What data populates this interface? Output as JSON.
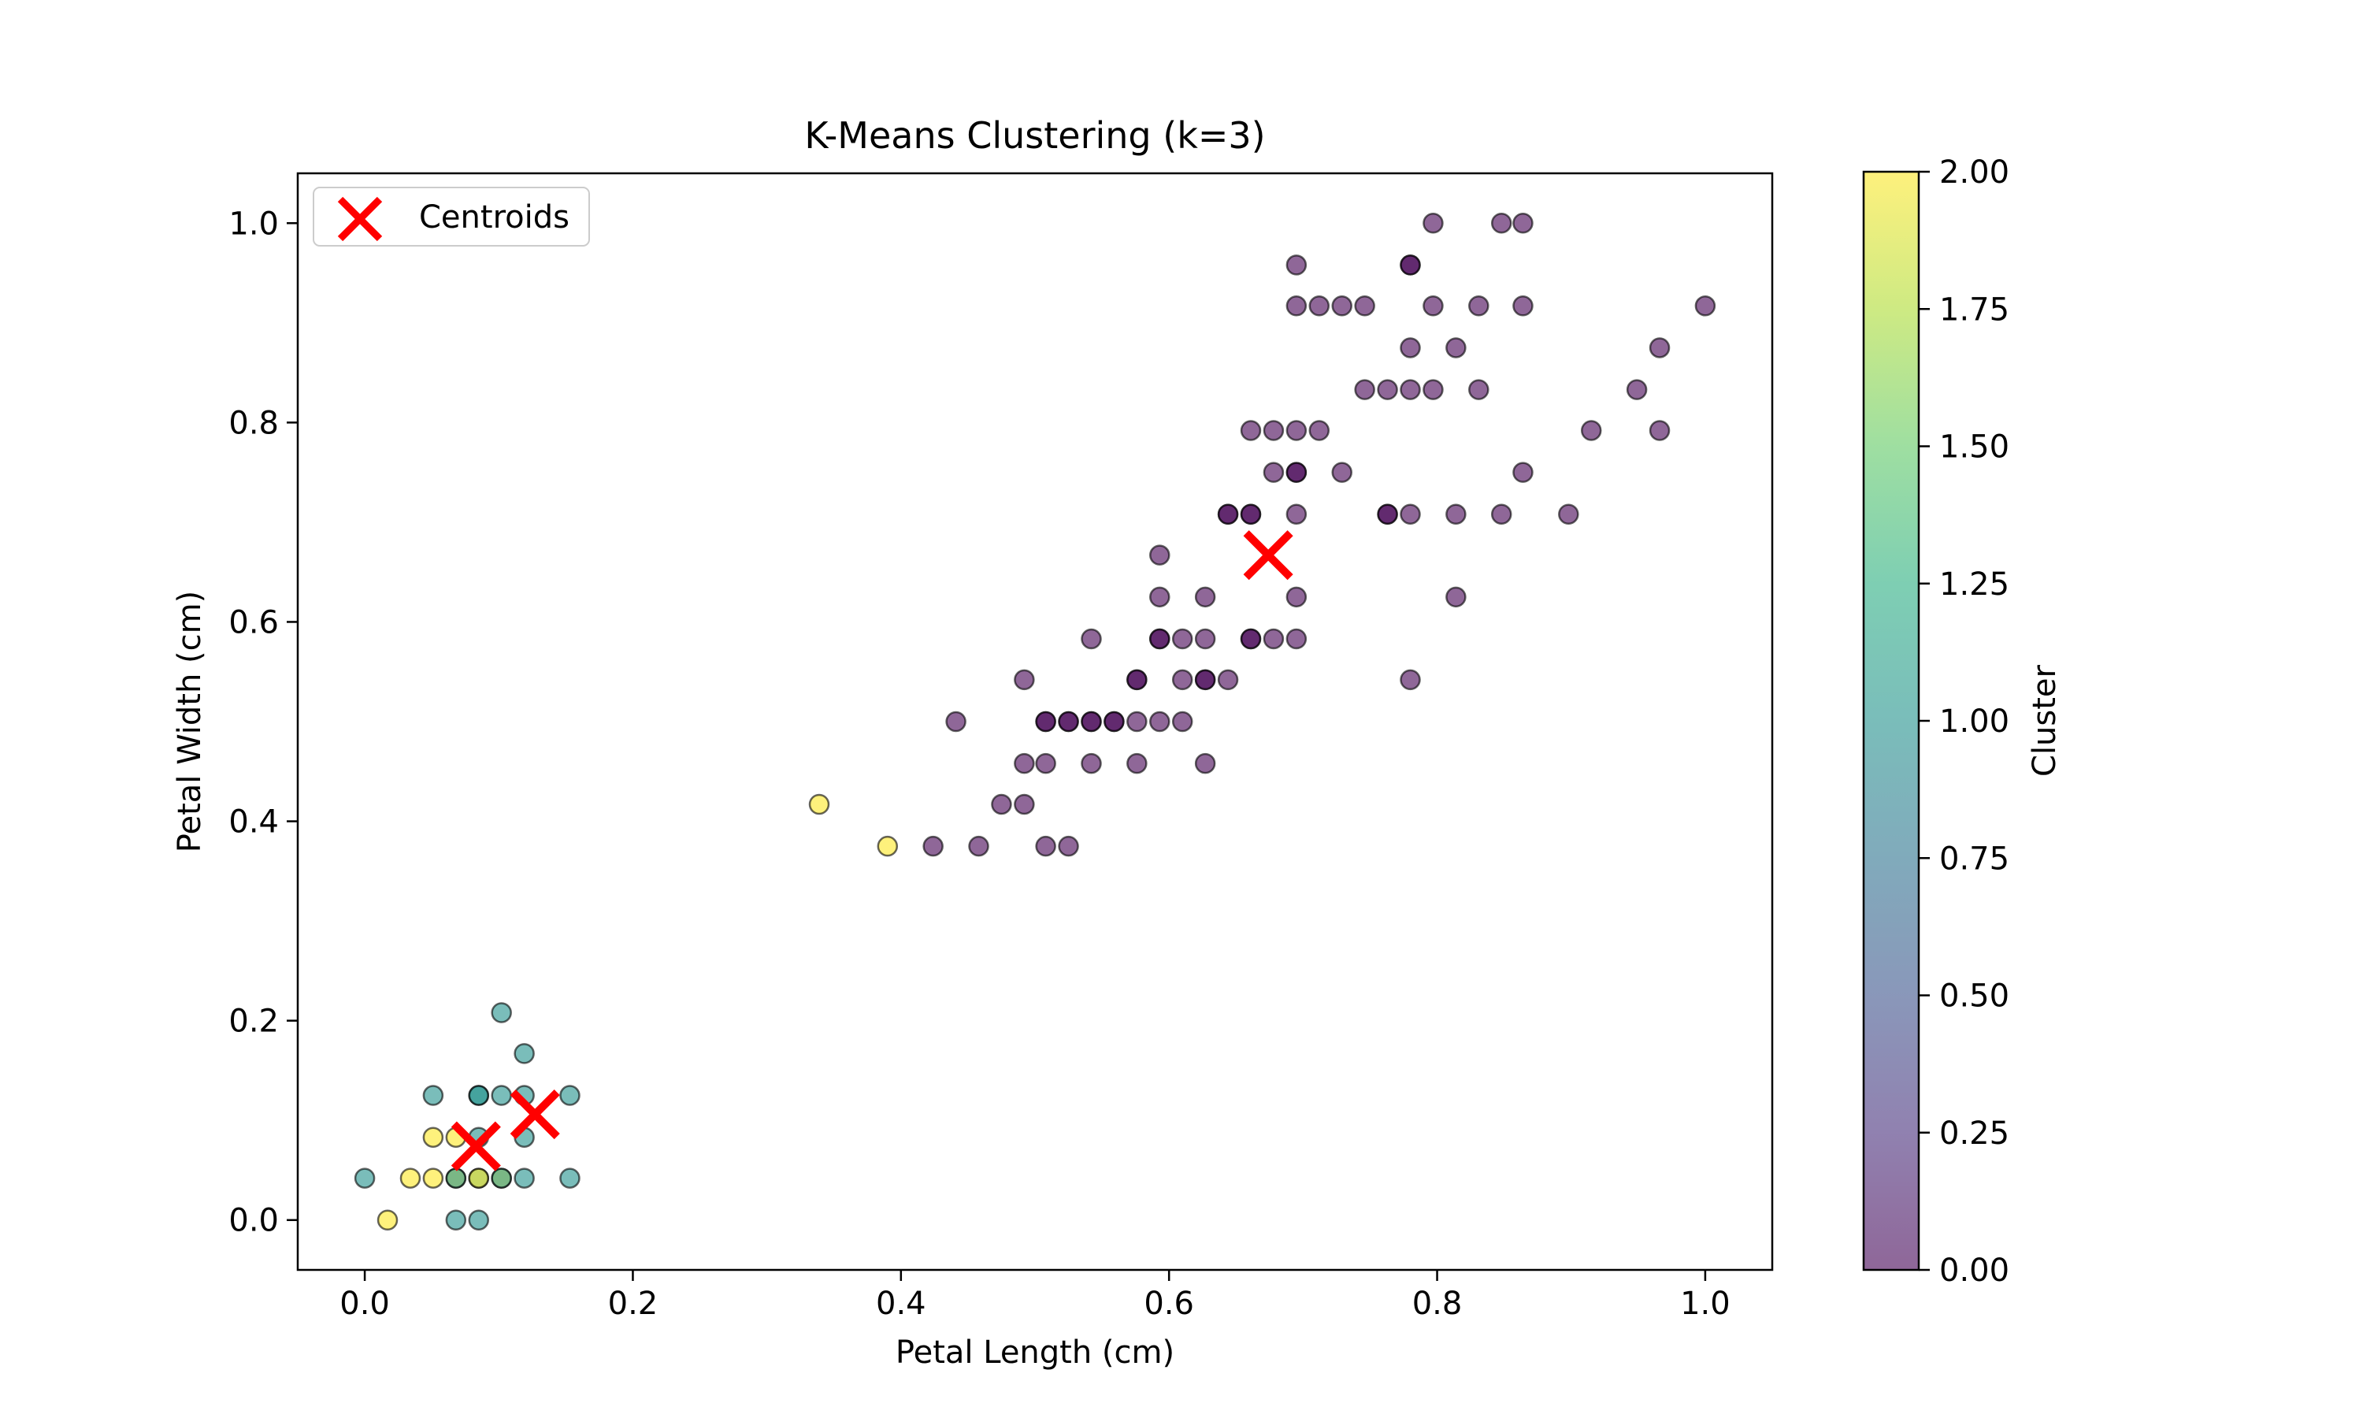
{
  "chart_data": {
    "type": "scatter",
    "title": "K-Means Clustering (k=3)",
    "xlabel": "Petal Length (cm)",
    "ylabel": "Petal Width (cm)",
    "xlim": [
      -0.05,
      1.05
    ],
    "ylim": [
      -0.05,
      1.05
    ],
    "xticks": [
      0.0,
      0.2,
      0.4,
      0.6,
      0.8,
      1.0
    ],
    "xtick_labels": [
      "0.0",
      "0.2",
      "0.4",
      "0.6",
      "0.8",
      "1.0"
    ],
    "yticks": [
      0.0,
      0.2,
      0.4,
      0.6,
      0.8,
      1.0
    ],
    "ytick_labels": [
      "0.0",
      "0.2",
      "0.4",
      "0.6",
      "0.8",
      "1.0"
    ],
    "grid": false,
    "legend": {
      "location": "upper-left",
      "entries": [
        "Centroids"
      ]
    },
    "colorbar": {
      "label": "Cluster",
      "range": [
        0.0,
        2.0
      ],
      "ticks": [
        0.0,
        0.25,
        0.5,
        0.75,
        1.0,
        1.25,
        1.5,
        1.75,
        2.0
      ],
      "tick_labels": [
        "0.00",
        "0.25",
        "0.50",
        "0.75",
        "1.00",
        "1.25",
        "1.50",
        "1.75",
        "2.00"
      ],
      "colormap": "viridis",
      "alpha": 0.6
    },
    "centroids": {
      "name": "Centroids",
      "color": "#ff0000",
      "marker": "x",
      "points": [
        [
          0.083,
          0.074
        ],
        [
          0.127,
          0.106
        ],
        [
          0.674,
          0.667
        ]
      ]
    },
    "points": [
      [
        0.0,
        0.042,
        1
      ],
      [
        0.017,
        0.0,
        2
      ],
      [
        0.034,
        0.042,
        2
      ],
      [
        0.051,
        0.042,
        2
      ],
      [
        0.051,
        0.083,
        2
      ],
      [
        0.051,
        0.125,
        1
      ],
      [
        0.068,
        0.0,
        1
      ],
      [
        0.068,
        0.042,
        2
      ],
      [
        0.068,
        0.042,
        1
      ],
      [
        0.068,
        0.083,
        2
      ],
      [
        0.085,
        0.0,
        1
      ],
      [
        0.085,
        0.042,
        1
      ],
      [
        0.085,
        0.042,
        2
      ],
      [
        0.085,
        0.083,
        1
      ],
      [
        0.085,
        0.125,
        1
      ],
      [
        0.085,
        0.125,
        1
      ],
      [
        0.102,
        0.042,
        2
      ],
      [
        0.102,
        0.042,
        1
      ],
      [
        0.102,
        0.125,
        1
      ],
      [
        0.102,
        0.208,
        1
      ],
      [
        0.119,
        0.042,
        1
      ],
      [
        0.119,
        0.083,
        1
      ],
      [
        0.119,
        0.125,
        1
      ],
      [
        0.119,
        0.167,
        1
      ],
      [
        0.153,
        0.042,
        1
      ],
      [
        0.153,
        0.125,
        1
      ],
      [
        0.339,
        0.417,
        2
      ],
      [
        0.39,
        0.375,
        2
      ],
      [
        0.424,
        0.375,
        0
      ],
      [
        0.458,
        0.375,
        0
      ],
      [
        0.441,
        0.5,
        0
      ],
      [
        0.475,
        0.417,
        0
      ],
      [
        0.492,
        0.417,
        0
      ],
      [
        0.492,
        0.458,
        0
      ],
      [
        0.492,
        0.542,
        0
      ],
      [
        0.508,
        0.375,
        0
      ],
      [
        0.508,
        0.458,
        0
      ],
      [
        0.508,
        0.5,
        0
      ],
      [
        0.508,
        0.5,
        0
      ],
      [
        0.525,
        0.375,
        0
      ],
      [
        0.525,
        0.5,
        0
      ],
      [
        0.525,
        0.5,
        0
      ],
      [
        0.542,
        0.458,
        0
      ],
      [
        0.542,
        0.5,
        0
      ],
      [
        0.542,
        0.5,
        0
      ],
      [
        0.542,
        0.583,
        0
      ],
      [
        0.559,
        0.5,
        0
      ],
      [
        0.559,
        0.5,
        0
      ],
      [
        0.576,
        0.458,
        0
      ],
      [
        0.576,
        0.5,
        0
      ],
      [
        0.576,
        0.542,
        0
      ],
      [
        0.576,
        0.542,
        0
      ],
      [
        0.593,
        0.5,
        0
      ],
      [
        0.593,
        0.583,
        0
      ],
      [
        0.593,
        0.583,
        0
      ],
      [
        0.593,
        0.625,
        0
      ],
      [
        0.593,
        0.667,
        0
      ],
      [
        0.61,
        0.5,
        0
      ],
      [
        0.61,
        0.542,
        0
      ],
      [
        0.61,
        0.583,
        0
      ],
      [
        0.627,
        0.458,
        0
      ],
      [
        0.627,
        0.542,
        0
      ],
      [
        0.627,
        0.542,
        0
      ],
      [
        0.627,
        0.583,
        0
      ],
      [
        0.627,
        0.625,
        0
      ],
      [
        0.644,
        0.542,
        0
      ],
      [
        0.644,
        0.708,
        0
      ],
      [
        0.644,
        0.708,
        0
      ],
      [
        0.661,
        0.583,
        0
      ],
      [
        0.661,
        0.583,
        0
      ],
      [
        0.661,
        0.708,
        0
      ],
      [
        0.661,
        0.708,
        0
      ],
      [
        0.661,
        0.792,
        0
      ],
      [
        0.678,
        0.583,
        0
      ],
      [
        0.678,
        0.75,
        0
      ],
      [
        0.678,
        0.792,
        0
      ],
      [
        0.695,
        0.583,
        0
      ],
      [
        0.695,
        0.625,
        0
      ],
      [
        0.695,
        0.708,
        0
      ],
      [
        0.695,
        0.75,
        0
      ],
      [
        0.695,
        0.75,
        0
      ],
      [
        0.695,
        0.792,
        0
      ],
      [
        0.695,
        0.917,
        0
      ],
      [
        0.695,
        0.958,
        0
      ],
      [
        0.712,
        0.792,
        0
      ],
      [
        0.712,
        0.917,
        0
      ],
      [
        0.729,
        0.75,
        0
      ],
      [
        0.729,
        0.917,
        0
      ],
      [
        0.746,
        0.833,
        0
      ],
      [
        0.746,
        0.917,
        0
      ],
      [
        0.763,
        0.708,
        0
      ],
      [
        0.763,
        0.708,
        0
      ],
      [
        0.763,
        0.833,
        0
      ],
      [
        0.78,
        0.542,
        0
      ],
      [
        0.78,
        0.708,
        0
      ],
      [
        0.78,
        0.833,
        0
      ],
      [
        0.78,
        0.875,
        0
      ],
      [
        0.78,
        0.958,
        0
      ],
      [
        0.78,
        0.958,
        0
      ],
      [
        0.797,
        0.833,
        0
      ],
      [
        0.797,
        0.917,
        0
      ],
      [
        0.797,
        1.0,
        0
      ],
      [
        0.814,
        0.625,
        0
      ],
      [
        0.814,
        0.708,
        0
      ],
      [
        0.814,
        0.875,
        0
      ],
      [
        0.831,
        0.833,
        0
      ],
      [
        0.831,
        0.917,
        0
      ],
      [
        0.848,
        0.708,
        0
      ],
      [
        0.848,
        1.0,
        0
      ],
      [
        0.864,
        0.75,
        0
      ],
      [
        0.864,
        0.917,
        0
      ],
      [
        0.864,
        1.0,
        0
      ],
      [
        0.898,
        0.708,
        0
      ],
      [
        0.915,
        0.792,
        0
      ],
      [
        0.949,
        0.833,
        0
      ],
      [
        0.966,
        0.792,
        0
      ],
      [
        0.966,
        0.875,
        0
      ],
      [
        1.0,
        0.917,
        0
      ]
    ]
  }
}
